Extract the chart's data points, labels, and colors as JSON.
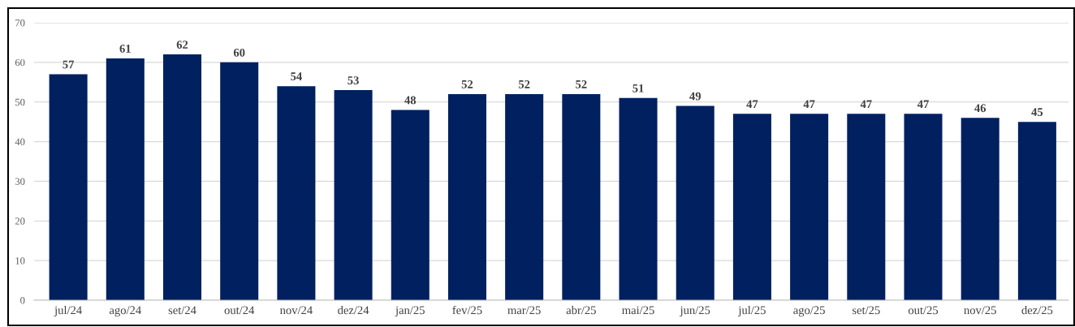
{
  "chart_data": {
    "type": "bar",
    "categories": [
      "jul/24",
      "ago/24",
      "set/24",
      "out/24",
      "nov/24",
      "dez/24",
      "jan/25",
      "fev/25",
      "mar/25",
      "abr/25",
      "mai/25",
      "jun/25",
      "jul/25",
      "ago/25",
      "set/25",
      "out/25",
      "nov/25",
      "dez/25"
    ],
    "values": [
      57,
      61,
      62,
      60,
      54,
      53,
      48,
      52,
      52,
      52,
      51,
      49,
      47,
      47,
      47,
      47,
      46,
      45
    ],
    "color": "#002060",
    "ylim": [
      0,
      70
    ],
    "yticks": [
      0,
      10,
      20,
      30,
      40,
      50,
      60,
      70
    ],
    "grid": "y",
    "data_labels": true,
    "legend": false
  }
}
